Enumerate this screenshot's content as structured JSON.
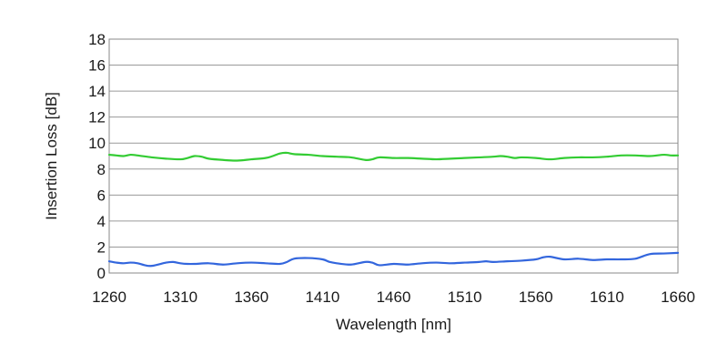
{
  "chart_data": {
    "type": "line",
    "title": "",
    "xlabel": "Wavelength [nm]",
    "ylabel": "Insertion Loss [dB]",
    "xlim": [
      1260,
      1660
    ],
    "ylim": [
      0,
      18
    ],
    "x_ticks": [
      1260,
      1310,
      1360,
      1410,
      1460,
      1510,
      1560,
      1610,
      1660
    ],
    "y_ticks": [
      0,
      2,
      4,
      6,
      8,
      10,
      12,
      14,
      16,
      18
    ],
    "grid": {
      "horizontal": true,
      "vertical": false
    },
    "legend": "none",
    "series": [
      {
        "color": "#33cc33",
        "x": [
          1260,
          1265,
          1270,
          1275,
          1280,
          1290,
          1300,
          1310,
          1315,
          1320,
          1325,
          1330,
          1340,
          1350,
          1360,
          1370,
          1375,
          1380,
          1385,
          1390,
          1400,
          1410,
          1420,
          1430,
          1440,
          1445,
          1450,
          1460,
          1470,
          1480,
          1490,
          1500,
          1510,
          1520,
          1530,
          1535,
          1540,
          1545,
          1550,
          1560,
          1570,
          1580,
          1590,
          1600,
          1610,
          1620,
          1630,
          1640,
          1650,
          1655,
          1660
        ],
        "y": [
          9.1,
          9.05,
          9.0,
          9.1,
          9.05,
          8.9,
          8.8,
          8.75,
          8.85,
          9.0,
          8.95,
          8.8,
          8.7,
          8.65,
          8.75,
          8.85,
          9.0,
          9.2,
          9.25,
          9.15,
          9.1,
          9.0,
          8.95,
          8.9,
          8.7,
          8.75,
          8.9,
          8.85,
          8.85,
          8.8,
          8.75,
          8.8,
          8.85,
          8.9,
          8.95,
          9.0,
          8.95,
          8.85,
          8.9,
          8.85,
          8.75,
          8.85,
          8.9,
          8.9,
          8.95,
          9.05,
          9.05,
          9.0,
          9.1,
          9.05,
          9.05
        ]
      },
      {
        "color": "#3366dd",
        "x": [
          1260,
          1265,
          1270,
          1275,
          1280,
          1285,
          1290,
          1300,
          1305,
          1310,
          1315,
          1320,
          1330,
          1340,
          1350,
          1360,
          1370,
          1380,
          1385,
          1390,
          1400,
          1410,
          1415,
          1420,
          1430,
          1440,
          1445,
          1450,
          1460,
          1470,
          1480,
          1490,
          1500,
          1510,
          1520,
          1525,
          1530,
          1540,
          1550,
          1560,
          1565,
          1570,
          1580,
          1590,
          1600,
          1610,
          1620,
          1630,
          1640,
          1650,
          1660
        ],
        "y": [
          0.9,
          0.8,
          0.75,
          0.8,
          0.75,
          0.6,
          0.55,
          0.8,
          0.85,
          0.75,
          0.7,
          0.7,
          0.75,
          0.65,
          0.75,
          0.8,
          0.75,
          0.7,
          0.85,
          1.1,
          1.15,
          1.05,
          0.85,
          0.75,
          0.65,
          0.85,
          0.8,
          0.6,
          0.7,
          0.65,
          0.75,
          0.8,
          0.75,
          0.8,
          0.85,
          0.9,
          0.85,
          0.9,
          0.95,
          1.05,
          1.2,
          1.25,
          1.05,
          1.1,
          1.0,
          1.05,
          1.05,
          1.1,
          1.45,
          1.5,
          1.55
        ]
      }
    ]
  }
}
